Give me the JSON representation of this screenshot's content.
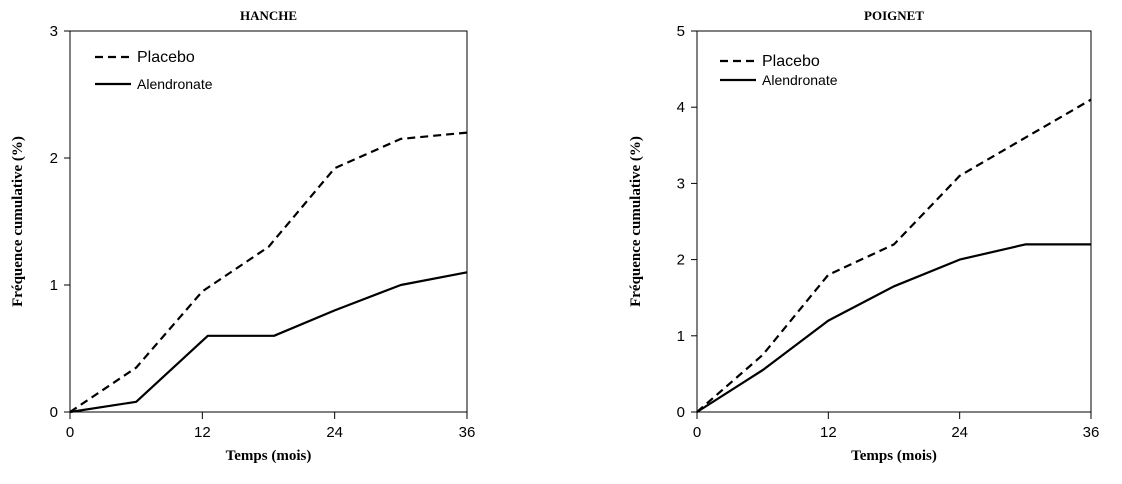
{
  "chart_data": [
    {
      "type": "line",
      "title": "HANCHE",
      "xlabel": "Temps (mois)",
      "ylabel": "Fréquence cumulative (%)",
      "xlim": [
        0,
        36
      ],
      "ylim": [
        0,
        3
      ],
      "xticks": [
        "0",
        "12",
        "24",
        "36"
      ],
      "yticks": [
        "0",
        "1",
        "2",
        "3"
      ],
      "grid": false,
      "legend_position": "top-left",
      "series": [
        {
          "name": "Placebo",
          "style": "dashed",
          "x": [
            0,
            6,
            12,
            18,
            24,
            30,
            36
          ],
          "y": [
            0,
            0.35,
            0.95,
            1.3,
            1.92,
            2.15,
            2.2
          ]
        },
        {
          "name": "Alendronate",
          "style": "solid",
          "x": [
            0,
            6,
            12.5,
            18.5,
            24,
            30,
            36
          ],
          "y": [
            0,
            0.08,
            0.6,
            0.6,
            0.8,
            1.0,
            1.1
          ]
        }
      ]
    },
    {
      "type": "line",
      "title": "POIGNET",
      "xlabel": "Temps (mois)",
      "ylabel": "Fréquence cumulative (%)",
      "xlim": [
        0,
        36
      ],
      "ylim": [
        0,
        5
      ],
      "xticks": [
        "0",
        "12",
        "24",
        "36"
      ],
      "yticks": [
        "0",
        "1",
        "2",
        "3",
        "4",
        "5"
      ],
      "grid": false,
      "legend_position": "top-left",
      "series": [
        {
          "name": "Placebo",
          "style": "dashed",
          "x": [
            0,
            6,
            12,
            18,
            24,
            30,
            36
          ],
          "y": [
            0,
            0.75,
            1.8,
            2.2,
            3.1,
            3.6,
            4.1
          ]
        },
        {
          "name": "Alendronate",
          "style": "solid",
          "x": [
            0,
            6,
            12,
            18,
            24,
            30,
            36
          ],
          "y": [
            0,
            0.55,
            1.2,
            1.65,
            2.0,
            2.2,
            2.2
          ]
        }
      ]
    }
  ]
}
